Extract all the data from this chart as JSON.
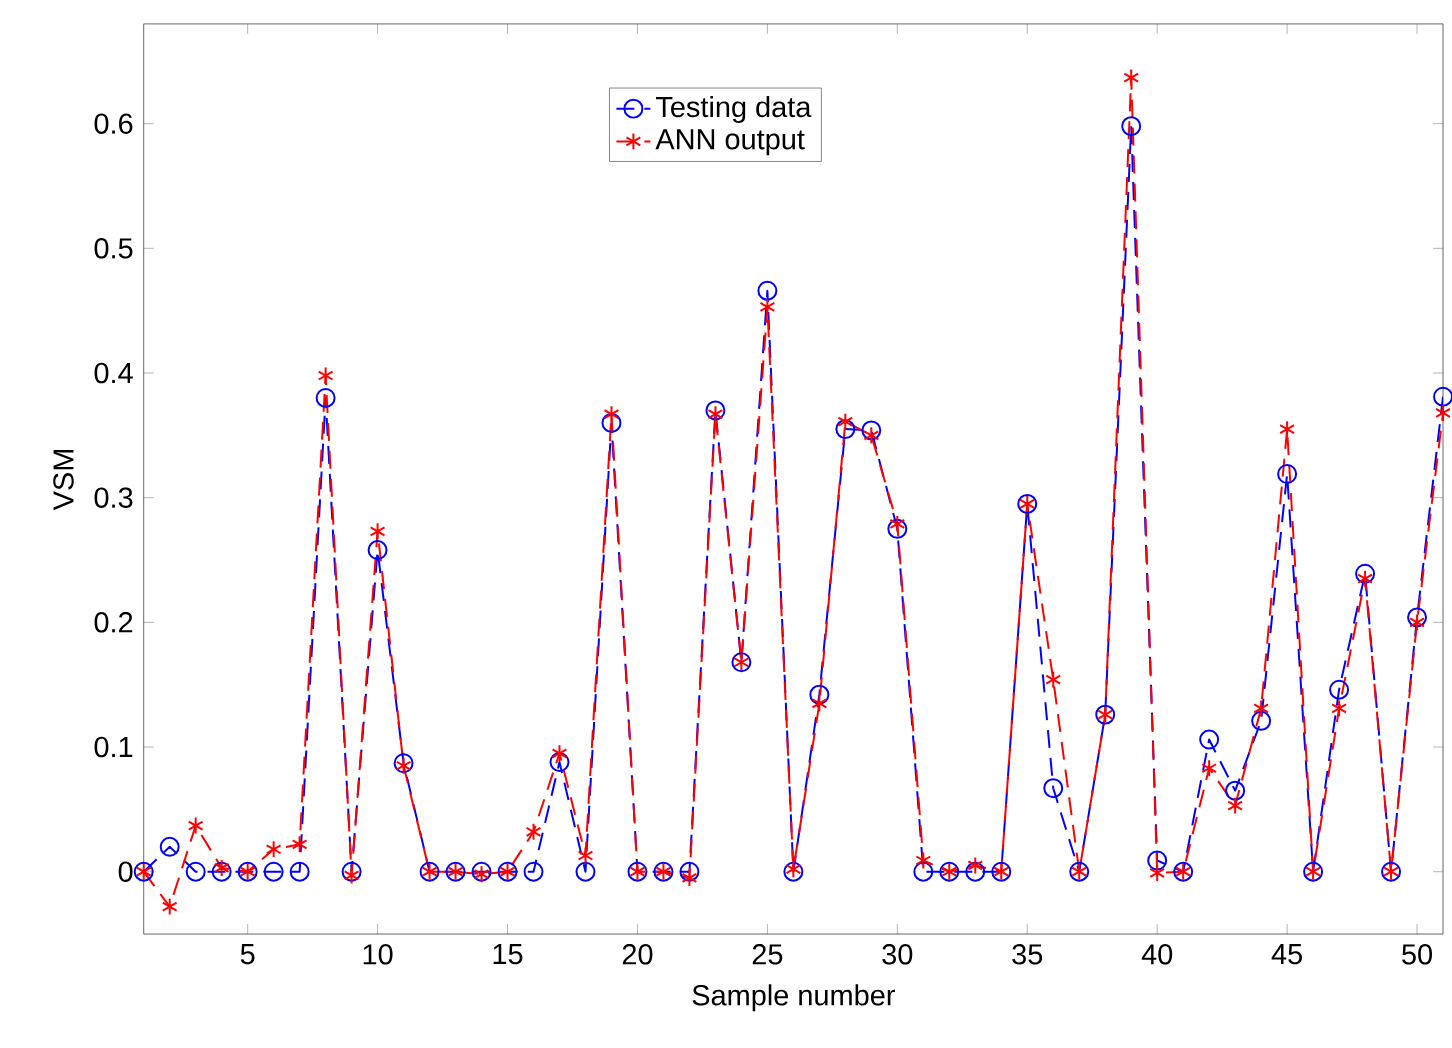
{
  "chart_data": {
    "type": "line",
    "xlabel": "Sample number",
    "ylabel": "VSM",
    "x": [
      1,
      2,
      3,
      4,
      5,
      6,
      7,
      8,
      9,
      10,
      11,
      12,
      13,
      14,
      15,
      16,
      17,
      18,
      19,
      20,
      21,
      22,
      23,
      24,
      25,
      26,
      27,
      28,
      29,
      30,
      31,
      32,
      33,
      34,
      35,
      36,
      37,
      38,
      39,
      40,
      41,
      42,
      43,
      44,
      45,
      46,
      47,
      48,
      49,
      50,
      51
    ],
    "series": [
      {
        "name": "Testing data",
        "color": "#0000ff",
        "marker": "circle",
        "values": [
          0,
          0.02,
          0,
          0,
          0,
          0,
          0,
          0.38,
          0,
          0.258,
          0.087,
          0,
          0,
          0,
          0,
          0,
          0.088,
          0,
          0.36,
          0,
          0,
          0,
          0.37,
          0.168,
          0.466,
          0,
          0.142,
          0.355,
          0.354,
          0.275,
          0,
          0,
          0,
          0,
          0.295,
          0.067,
          0,
          0.126,
          0.598,
          0.009,
          0,
          0.106,
          0.065,
          0.121,
          0.319,
          0,
          0.146,
          0.239,
          0,
          0.204,
          0.381
        ]
      },
      {
        "name": "ANN output",
        "color": "#ff0000",
        "marker": "cross",
        "values": [
          0,
          -0.028,
          0.037,
          0.003,
          0,
          0.018,
          0.022,
          0.398,
          -0.003,
          0.273,
          0.085,
          0,
          0,
          -0.002,
          0,
          0.032,
          0.095,
          0.013,
          0.367,
          0,
          0,
          -0.005,
          0.367,
          0.168,
          0.453,
          0.002,
          0.135,
          0.361,
          0.35,
          0.279,
          0.009,
          0,
          0.005,
          0,
          0.295,
          0.154,
          0,
          0.126,
          0.637,
          -0.001,
          0,
          0.083,
          0.053,
          0.131,
          0.355,
          0,
          0.131,
          0.235,
          0,
          0.2,
          0.368
        ]
      }
    ],
    "line_style": "dashed",
    "legend": "top",
    "grid": false,
    "xlim": [
      1,
      51
    ],
    "ylim": [
      -0.05,
      0.68
    ],
    "xticks": [
      5,
      10,
      15,
      20,
      25,
      30,
      35,
      40,
      45,
      50
    ],
    "yticks": [
      0,
      0.1,
      0.2,
      0.3,
      0.4,
      0.5,
      0.6
    ]
  }
}
